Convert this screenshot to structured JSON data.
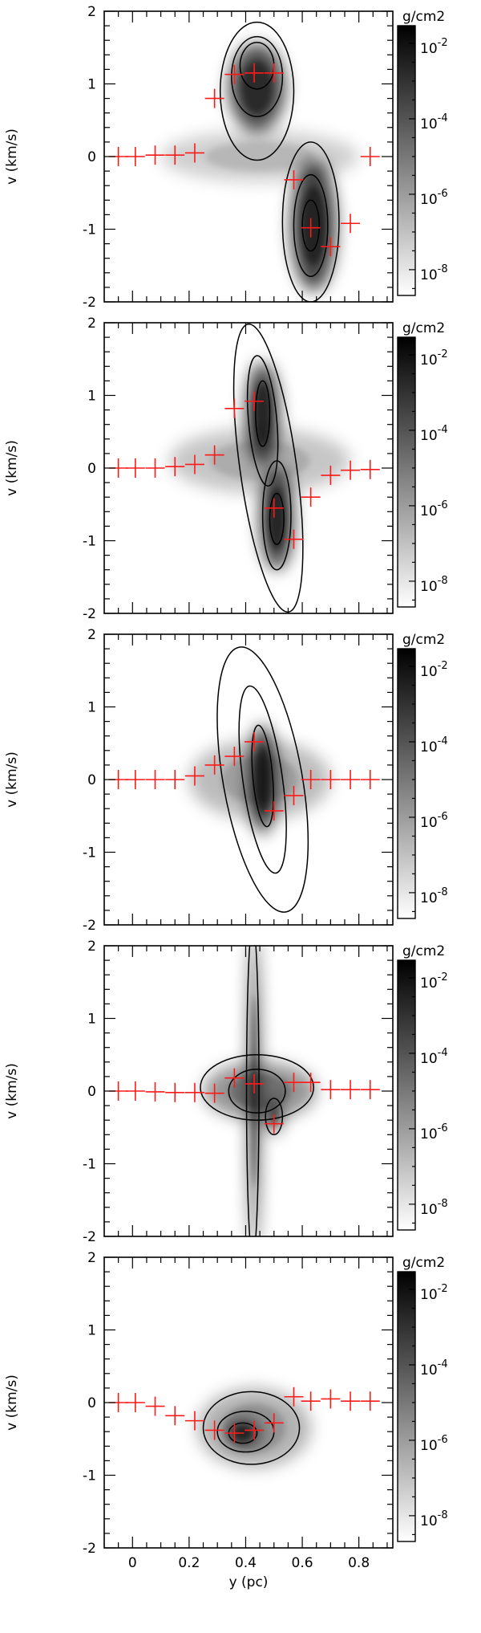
{
  "chart_data": [
    {
      "type": "heatmap",
      "panel": 1,
      "xlabel": "",
      "ylabel": "v (km/s)",
      "colorbar": {
        "unit": "g/cm2",
        "tick_labels": [
          "10-2",
          "10-4",
          "10-6",
          "10-8"
        ]
      },
      "xlim": [
        -0.1,
        0.92
      ],
      "ylim": [
        -2,
        2
      ],
      "y_ticks": [
        "2",
        "1",
        "0",
        "-1",
        "-2"
      ],
      "x_tick_labels_shown": false,
      "markers": {
        "y_pc": [
          -0.05,
          0.01,
          0.08,
          0.15,
          0.22,
          0.29,
          0.36,
          0.43,
          0.5,
          0.57,
          0.63,
          0.7,
          0.77,
          0.84
        ],
        "v_kms": [
          0.0,
          0.0,
          0.02,
          0.02,
          0.05,
          0.8,
          1.13,
          1.15,
          1.15,
          -0.32,
          -0.98,
          -1.24,
          -0.92,
          0.0
        ]
      },
      "blobs": [
        {
          "x": 0.44,
          "y": 0.95,
          "sx": 0.1,
          "sy": 0.6,
          "a": 0.95
        },
        {
          "x": 0.64,
          "y": -0.95,
          "sx": 0.08,
          "sy": 0.9,
          "a": 1.0
        },
        {
          "x": 0.45,
          "y": 0.0,
          "sx": 0.35,
          "sy": 0.35,
          "a": 0.25
        }
      ],
      "contours": [
        {
          "x": 0.44,
          "y": 0.9,
          "rx": 0.13,
          "ry": 0.95,
          "rot": 0
        },
        {
          "x": 0.44,
          "y": 1.1,
          "rx": 0.09,
          "ry": 0.55,
          "rot": 0
        },
        {
          "x": 0.44,
          "y": 1.25,
          "rx": 0.06,
          "ry": 0.32,
          "rot": 0
        },
        {
          "x": 0.63,
          "y": -0.9,
          "rx": 0.1,
          "ry": 1.1,
          "rot": 0
        },
        {
          "x": 0.63,
          "y": -0.95,
          "rx": 0.06,
          "ry": 0.7,
          "rot": 0
        },
        {
          "x": 0.63,
          "y": -0.95,
          "rx": 0.03,
          "ry": 0.35,
          "rot": 0
        }
      ]
    },
    {
      "type": "heatmap",
      "panel": 2,
      "xlabel": "",
      "ylabel": "v (km/s)",
      "colorbar": {
        "unit": "g/cm2",
        "tick_labels": [
          "10-2",
          "10-4",
          "10-6",
          "10-8"
        ]
      },
      "xlim": [
        -0.1,
        0.92
      ],
      "ylim": [
        -2,
        2
      ],
      "y_ticks": [
        "2",
        "1",
        "0",
        "-1",
        "-2"
      ],
      "x_tick_labels_shown": false,
      "markers": {
        "y_pc": [
          -0.05,
          0.01,
          0.08,
          0.15,
          0.22,
          0.29,
          0.36,
          0.43,
          0.5,
          0.57,
          0.63,
          0.7,
          0.77,
          0.84
        ],
        "v_kms": [
          0.0,
          0.0,
          0.0,
          0.02,
          0.05,
          0.18,
          0.82,
          0.92,
          -0.55,
          -0.98,
          -0.4,
          -0.1,
          -0.03,
          -0.02
        ]
      },
      "blobs": [
        {
          "x": 0.46,
          "y": 0.75,
          "sx": 0.06,
          "sy": 0.7,
          "a": 1.0
        },
        {
          "x": 0.51,
          "y": -0.7,
          "sx": 0.06,
          "sy": 0.7,
          "a": 1.0
        },
        {
          "x": 0.45,
          "y": 0.1,
          "sx": 0.32,
          "sy": 0.45,
          "a": 0.3
        }
      ],
      "contours": [
        {
          "x": 0.48,
          "y": 0.0,
          "rx": 0.1,
          "ry": 2.0,
          "rot": -8
        },
        {
          "x": 0.46,
          "y": 0.65,
          "rx": 0.05,
          "ry": 0.9,
          "rot": -5
        },
        {
          "x": 0.46,
          "y": 0.75,
          "rx": 0.025,
          "ry": 0.45,
          "rot": 0
        },
        {
          "x": 0.51,
          "y": -0.65,
          "rx": 0.05,
          "ry": 0.75,
          "rot": 0
        },
        {
          "x": 0.51,
          "y": -0.7,
          "rx": 0.025,
          "ry": 0.35,
          "rot": 0
        }
      ]
    },
    {
      "type": "heatmap",
      "panel": 3,
      "xlabel": "",
      "ylabel": "v (km/s)",
      "colorbar": {
        "unit": "g/cm2",
        "tick_labels": [
          "10-2",
          "10-4",
          "10-6",
          "10-8"
        ]
      },
      "xlim": [
        -0.1,
        0.92
      ],
      "ylim": [
        -2,
        2
      ],
      "y_ticks": [
        "2",
        "1",
        "0",
        "-1",
        "-2"
      ],
      "x_tick_labels_shown": false,
      "markers": {
        "y_pc": [
          -0.05,
          0.01,
          0.08,
          0.15,
          0.22,
          0.29,
          0.36,
          0.43,
          0.5,
          0.57,
          0.63,
          0.7,
          0.77,
          0.84
        ],
        "v_kms": [
          0.0,
          0.0,
          0.0,
          0.0,
          0.05,
          0.2,
          0.32,
          0.52,
          -0.43,
          -0.22,
          0.0,
          0.0,
          0.0,
          0.0
        ]
      },
      "blobs": [
        {
          "x": 0.46,
          "y": 0.0,
          "sx": 0.05,
          "sy": 0.75,
          "a": 1.0
        },
        {
          "x": 0.45,
          "y": 0.0,
          "sx": 0.25,
          "sy": 0.55,
          "a": 0.35
        }
      ],
      "contours": [
        {
          "x": 0.46,
          "y": 0.0,
          "rx": 0.14,
          "ry": 1.85,
          "rot": -10
        },
        {
          "x": 0.46,
          "y": 0.0,
          "rx": 0.07,
          "ry": 1.3,
          "rot": -8
        },
        {
          "x": 0.46,
          "y": 0.05,
          "rx": 0.035,
          "ry": 0.7,
          "rot": -5
        }
      ]
    },
    {
      "type": "heatmap",
      "panel": 4,
      "xlabel": "",
      "ylabel": "v (km/s)",
      "colorbar": {
        "unit": "g/cm2",
        "tick_labels": [
          "10-2",
          "10-4",
          "10-6",
          "10-8"
        ]
      },
      "xlim": [
        -0.1,
        0.92
      ],
      "ylim": [
        -2,
        2
      ],
      "y_ticks": [
        "2",
        "1",
        "0",
        "-1",
        "-2"
      ],
      "x_tick_labels_shown": false,
      "markers": {
        "y_pc": [
          -0.05,
          0.01,
          0.08,
          0.15,
          0.22,
          0.29,
          0.36,
          0.43,
          0.5,
          0.57,
          0.63,
          0.7,
          0.77,
          0.84
        ],
        "v_kms": [
          0.0,
          0.0,
          -0.01,
          -0.02,
          -0.02,
          -0.03,
          0.18,
          0.1,
          -0.45,
          0.12,
          0.12,
          0.02,
          0.02,
          0.02
        ]
      },
      "blobs": [
        {
          "x": 0.43,
          "y": 0.0,
          "sx": 0.018,
          "sy": 2.2,
          "a": 1.0
        },
        {
          "x": 0.45,
          "y": 0.0,
          "sx": 0.2,
          "sy": 0.4,
          "a": 0.55
        },
        {
          "x": 0.5,
          "y": -0.35,
          "sx": 0.03,
          "sy": 0.25,
          "a": 0.7
        }
      ],
      "contours": [
        {
          "x": 0.44,
          "y": 0.05,
          "rx": 0.2,
          "ry": 0.45,
          "rot": 0
        },
        {
          "x": 0.44,
          "y": 0.0,
          "rx": 0.1,
          "ry": 0.3,
          "rot": 0
        },
        {
          "x": 0.425,
          "y": 0.0,
          "rx": 0.022,
          "ry": 2.3,
          "rot": 0
        },
        {
          "x": 0.5,
          "y": -0.35,
          "rx": 0.03,
          "ry": 0.25,
          "rot": 0
        }
      ]
    },
    {
      "type": "heatmap",
      "panel": 5,
      "xlabel": "y (pc)",
      "ylabel": "v (km/s)",
      "colorbar": {
        "unit": "g/cm2",
        "tick_labels": [
          "10-2",
          "10-4",
          "10-6",
          "10-8"
        ]
      },
      "xlim": [
        -0.1,
        0.92
      ],
      "ylim": [
        -2,
        2
      ],
      "y_ticks": [
        "2",
        "1",
        "0",
        "-1",
        "-2"
      ],
      "x_tick_labels_shown": true,
      "x_ticks": [
        "0",
        "0.2",
        "0.4",
        "0.6",
        "0.8"
      ],
      "markers": {
        "y_pc": [
          -0.05,
          0.01,
          0.08,
          0.15,
          0.22,
          0.29,
          0.36,
          0.43,
          0.5,
          0.57,
          0.63,
          0.7,
          0.77,
          0.84
        ],
        "v_kms": [
          0.0,
          0.0,
          -0.05,
          -0.18,
          -0.25,
          -0.38,
          -0.42,
          -0.38,
          -0.28,
          0.08,
          0.02,
          0.05,
          0.02,
          0.02
        ]
      },
      "blobs": [
        {
          "x": 0.39,
          "y": -0.42,
          "sx": 0.06,
          "sy": 0.18,
          "a": 0.95
        },
        {
          "x": 0.43,
          "y": -0.35,
          "sx": 0.2,
          "sy": 0.55,
          "a": 0.4
        }
      ],
      "contours": [
        {
          "x": 0.42,
          "y": -0.35,
          "rx": 0.17,
          "ry": 0.5,
          "rot": 0
        },
        {
          "x": 0.4,
          "y": -0.4,
          "rx": 0.1,
          "ry": 0.28,
          "rot": 0
        },
        {
          "x": 0.39,
          "y": -0.42,
          "rx": 0.05,
          "ry": 0.14,
          "rot": 0
        }
      ]
    }
  ]
}
